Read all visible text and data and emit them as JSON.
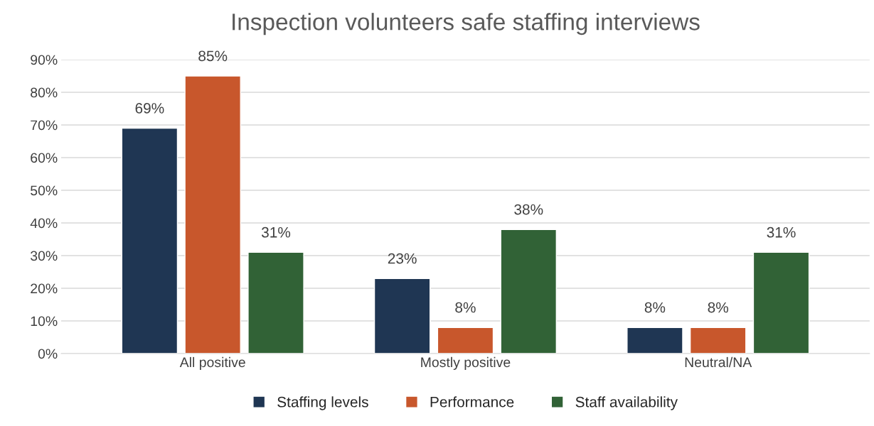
{
  "chart_data": {
    "type": "bar",
    "title": "Inspection volunteers safe staffing interviews",
    "categories": [
      "All positive",
      "Mostly positive",
      "Neutral/NA"
    ],
    "series": [
      {
        "name": "Staffing levels",
        "color": "#1f3653",
        "values": [
          69,
          23,
          8
        ],
        "value_labels": [
          "69%",
          "23%",
          "8%"
        ]
      },
      {
        "name": "Performance",
        "color": "#c8572c",
        "values": [
          85,
          8,
          8
        ],
        "value_labels": [
          "85%",
          "8%",
          "8%"
        ]
      },
      {
        "name": "Staff availability",
        "color": "#316236",
        "values": [
          31,
          38,
          31
        ],
        "value_labels": [
          "31%",
          "38%",
          "31%"
        ]
      }
    ],
    "ylim": [
      0,
      90
    ],
    "yticks": [
      {
        "value": 0,
        "label": "0%"
      },
      {
        "value": 10,
        "label": "10%"
      },
      {
        "value": 20,
        "label": "20%"
      },
      {
        "value": 30,
        "label": "30%"
      },
      {
        "value": 40,
        "label": "40%"
      },
      {
        "value": 50,
        "label": "50%"
      },
      {
        "value": 60,
        "label": "60%"
      },
      {
        "value": 70,
        "label": "70%"
      },
      {
        "value": 80,
        "label": "80%"
      },
      {
        "value": 90,
        "label": "90%"
      }
    ],
    "grid": "y",
    "legend": "bottom"
  }
}
